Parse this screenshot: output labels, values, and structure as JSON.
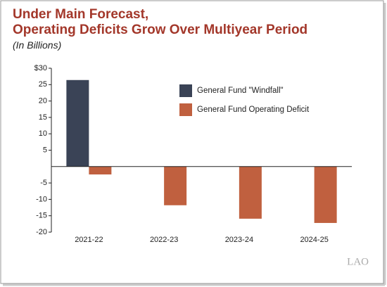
{
  "chart_data": {
    "type": "bar",
    "title": [
      "Under Main Forecast,",
      "Operating Deficits Grow Over Multiyear Period"
    ],
    "subtitle": "(In Billions)",
    "categories": [
      "2021-22",
      "2022-23",
      "2023-24",
      "2024-25"
    ],
    "series": [
      {
        "name": "General Fund \"Windfall\"",
        "color": "#3a4356",
        "values": [
          26.4,
          null,
          null,
          null
        ]
      },
      {
        "name": "General Fund Operating Deficit",
        "color": "#c0603f",
        "values": [
          -2.4,
          -11.8,
          -15.9,
          -17.2
        ]
      }
    ],
    "ylim": [
      -20,
      30
    ],
    "yticks": [
      {
        "value": 30,
        "label": "$30"
      },
      25,
      20,
      15,
      10,
      5,
      -5,
      -10,
      -15,
      -20
    ],
    "grid": false,
    "legend": "top-right"
  },
  "logo": "LAO"
}
